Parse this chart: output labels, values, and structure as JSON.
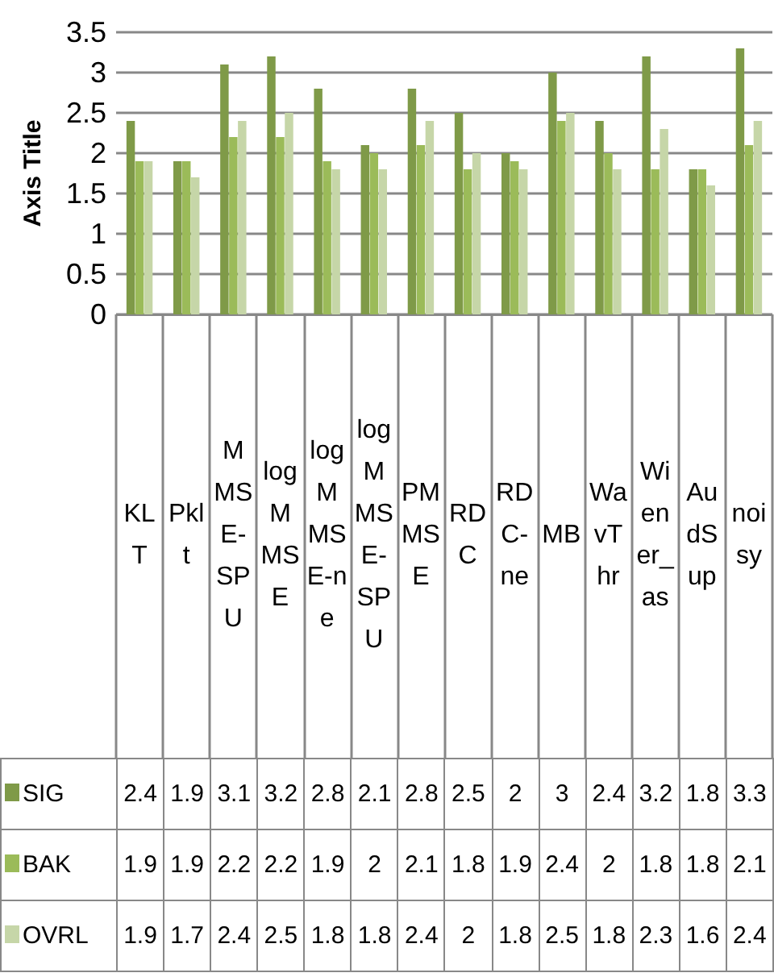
{
  "chart_data": {
    "type": "bar",
    "ylabel": "Axis Title",
    "categories": [
      "KLT",
      "Pklt",
      "MMSE-SPU",
      "logMMSE",
      "logMMSE-ne",
      "logMMSE-SPU",
      "PMMSE",
      "RDC",
      "RDC-ne",
      "MB",
      "WavThr",
      "Wiener_as",
      "AudSup",
      "noisy"
    ],
    "series": [
      {
        "name": "SIG",
        "color": "#7f9a48",
        "values": [
          2.4,
          1.9,
          3.1,
          3.2,
          2.8,
          2.1,
          2.8,
          2.5,
          2,
          3,
          2.4,
          3.2,
          1.8,
          3.3
        ]
      },
      {
        "name": "BAK",
        "color": "#9bbb59",
        "values": [
          1.9,
          1.9,
          2.2,
          2.2,
          1.9,
          2,
          2.1,
          1.8,
          1.9,
          2.4,
          2,
          1.8,
          1.8,
          2.1
        ]
      },
      {
        "name": "OVRL",
        "color": "#c6d6a8",
        "values": [
          1.9,
          1.7,
          2.4,
          2.5,
          1.8,
          1.8,
          2.4,
          2,
          1.8,
          2.5,
          1.8,
          2.3,
          1.6,
          2.4
        ]
      }
    ],
    "ylim": [
      0,
      3.5
    ],
    "yticks": [
      0,
      0.5,
      1,
      1.5,
      2,
      2.5,
      3,
      3.5
    ],
    "grid": "y",
    "legend": "bottom",
    "data_labels": true
  }
}
